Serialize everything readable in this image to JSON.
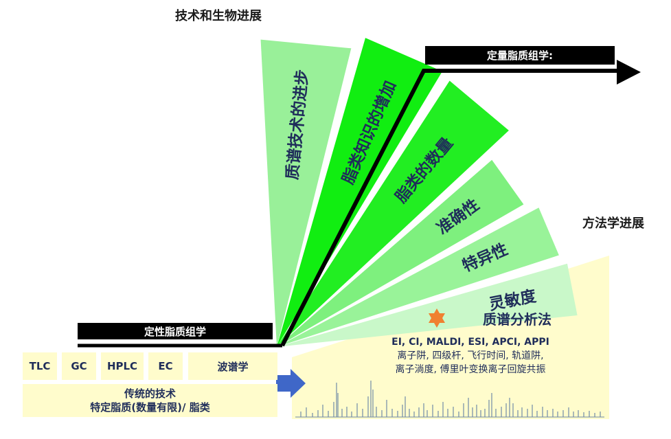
{
  "titles": {
    "tech_bio": "技术和生物进展",
    "method": "方法学进展"
  },
  "bars": {
    "qualitative": "定性脂质组学",
    "quantitative": "定量脂质组学:"
  },
  "fan": {
    "segments": [
      {
        "label": "质谱技术的进步",
        "color": "#99f099"
      },
      {
        "label": "脂类知识的增加",
        "color": "#11ee11"
      },
      {
        "label": "脂类的数量",
        "color": "#22ee22"
      },
      {
        "label": "准确性",
        "color": "#7ef07e"
      },
      {
        "label": "特异性",
        "color": "#99f399"
      },
      {
        "label": "灵敏度",
        "color": "#c9f8c9"
      }
    ]
  },
  "traditional": {
    "techniques": [
      "TLC",
      "GC",
      "HPLC",
      "EC",
      "波谱学"
    ],
    "caption_line1": "传统的技术",
    "caption_line2": "特定脂质(数量有限)/ 脂类"
  },
  "ms": {
    "title": "质谱分析法",
    "ionization": "EI, CI, MALDI, ESI, APCI, APPI",
    "analyzers_line1": "离子阱, 四级杆, 飞行时间, 轨道阱,",
    "analyzers_line2": "离子淌度, 傅里叶变换离子回旋共振"
  },
  "colors": {
    "bar": "#000000",
    "box": "#fffccc",
    "arrow_blue": "#3f67c8",
    "star": "#f08030",
    "spectrum": "#6f8aa8"
  }
}
